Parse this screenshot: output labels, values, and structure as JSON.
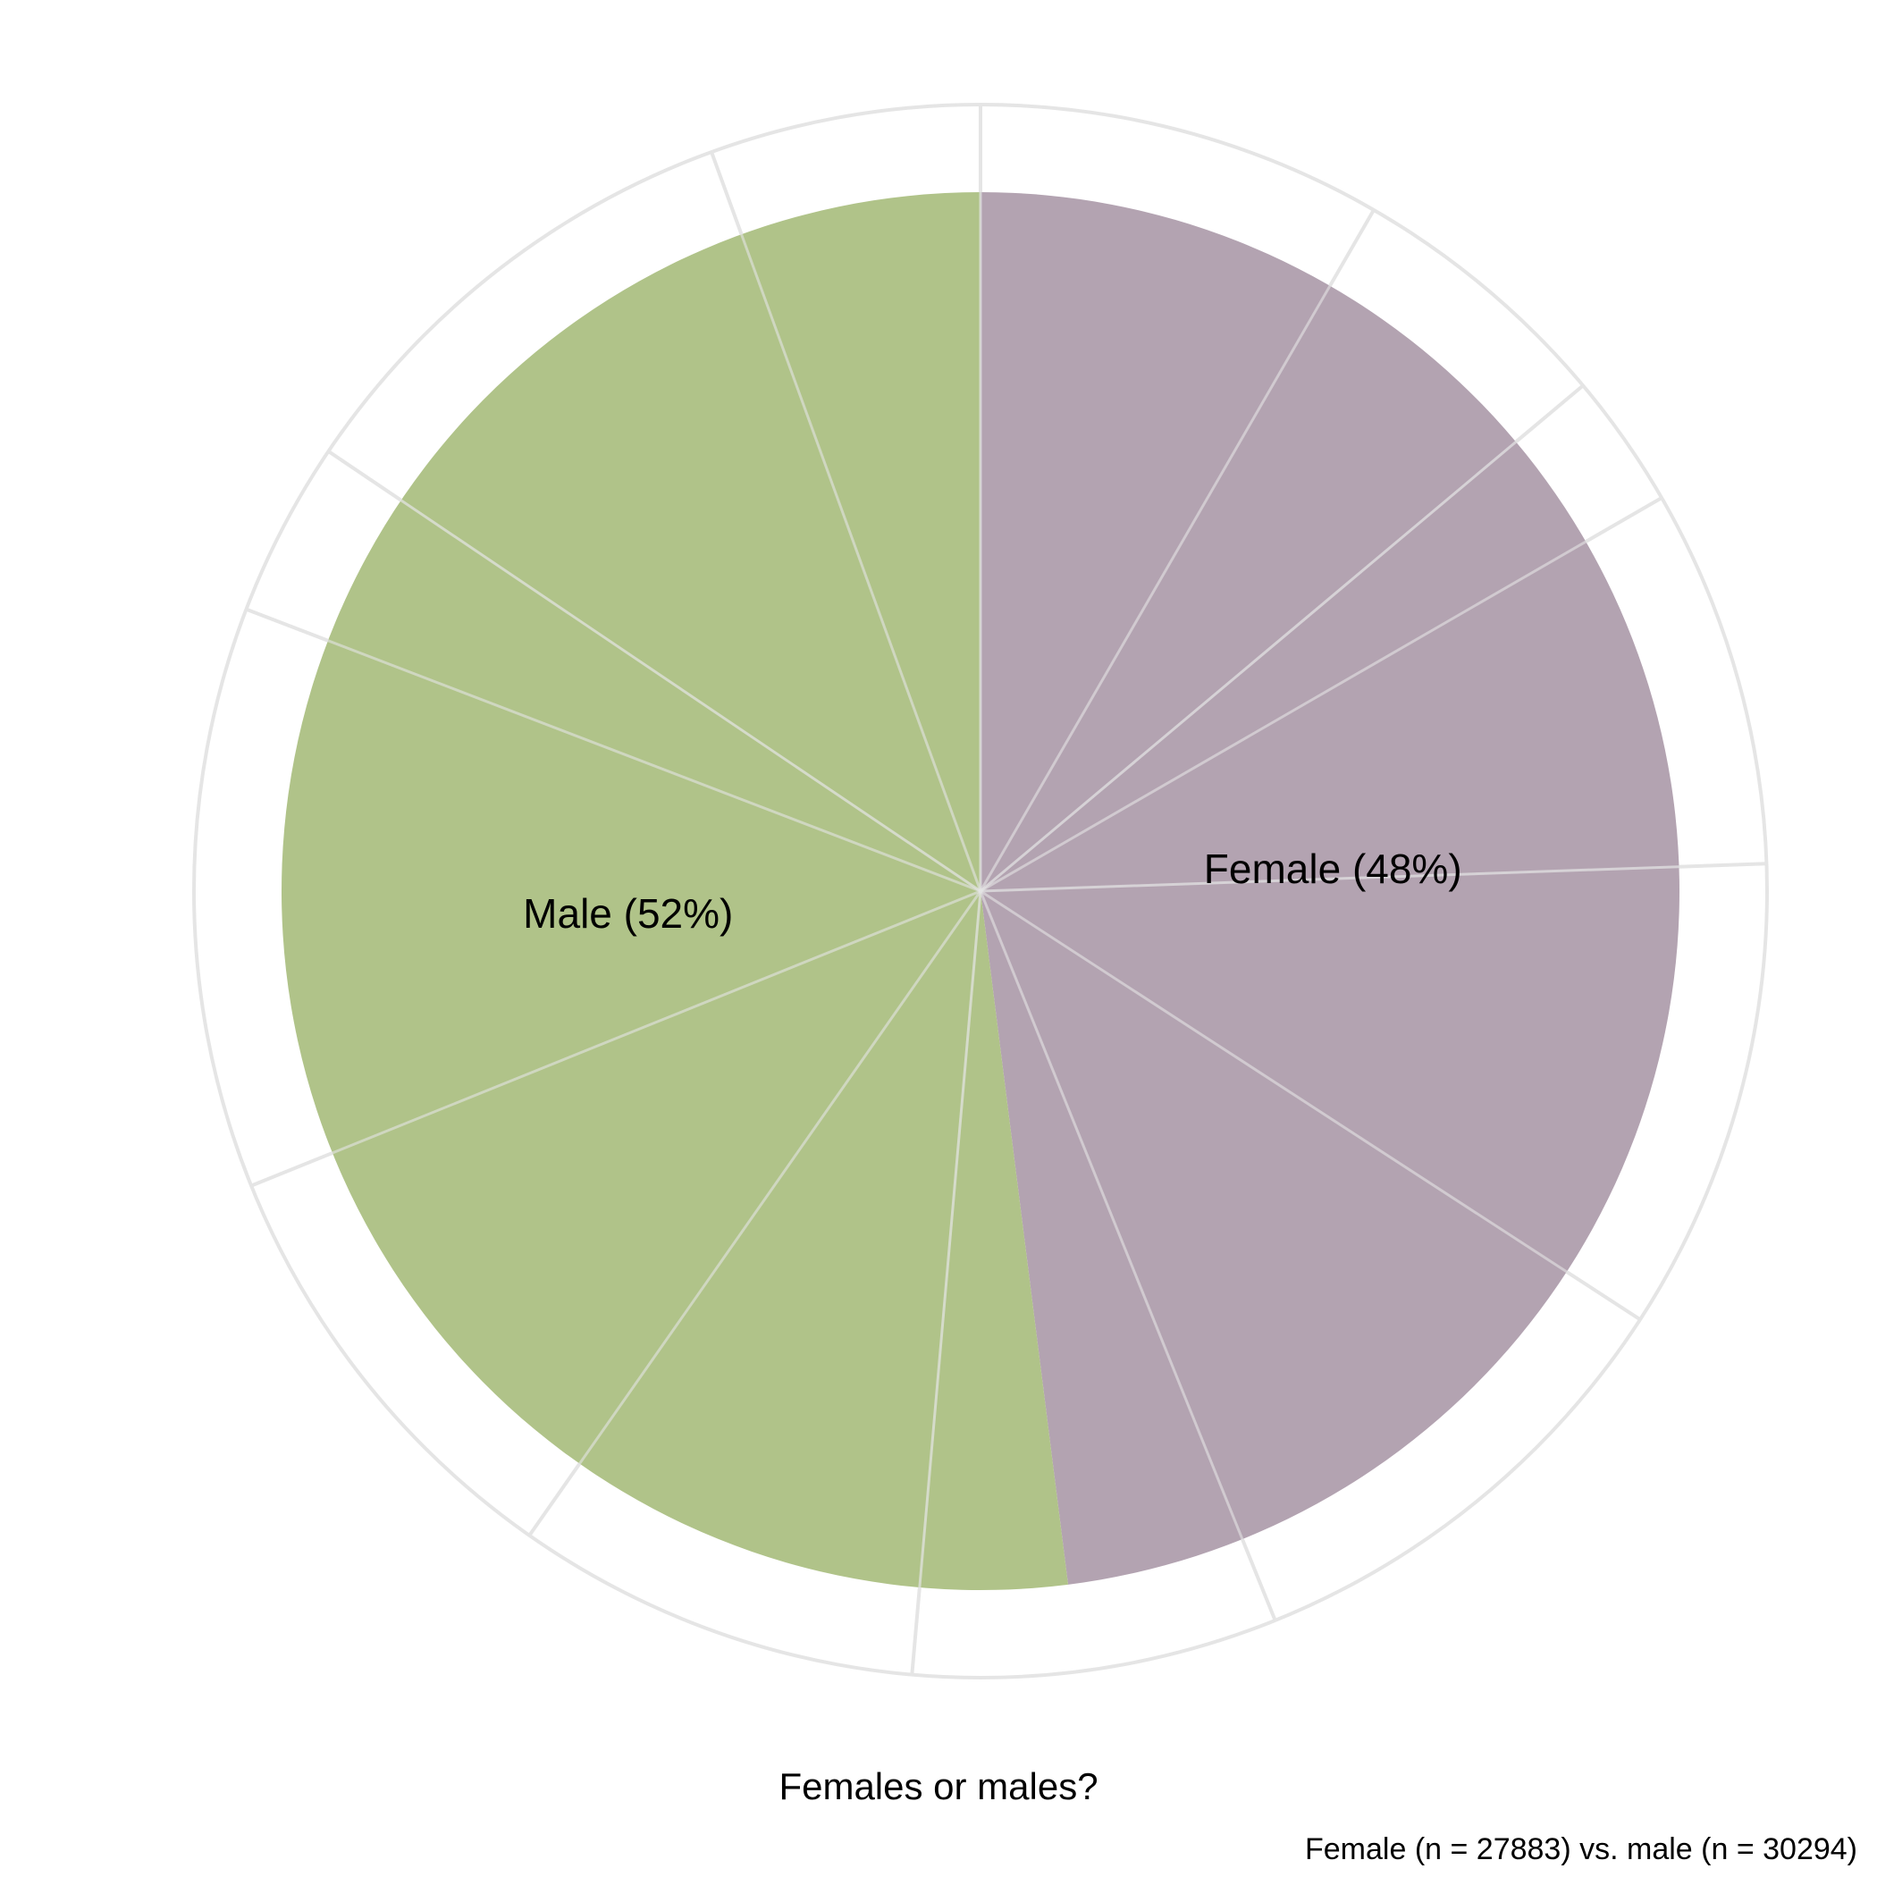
{
  "chart_data": {
    "type": "pie",
    "title": "Females or males?",
    "caption": "Female (n = 27883) vs. male (n = 30294)",
    "slices": [
      {
        "name": "Female",
        "label": "Female (48%)",
        "percent": 48,
        "n": 27883,
        "color": "#b3a3b1"
      },
      {
        "name": "Male",
        "label": "Male (52%)",
        "percent": 52,
        "n": 30294,
        "color": "#b0c389"
      }
    ],
    "start_angle_deg": 0,
    "direction": "clockwise",
    "grid": true,
    "grid_color": "#e5e5e5",
    "legend": "none"
  }
}
